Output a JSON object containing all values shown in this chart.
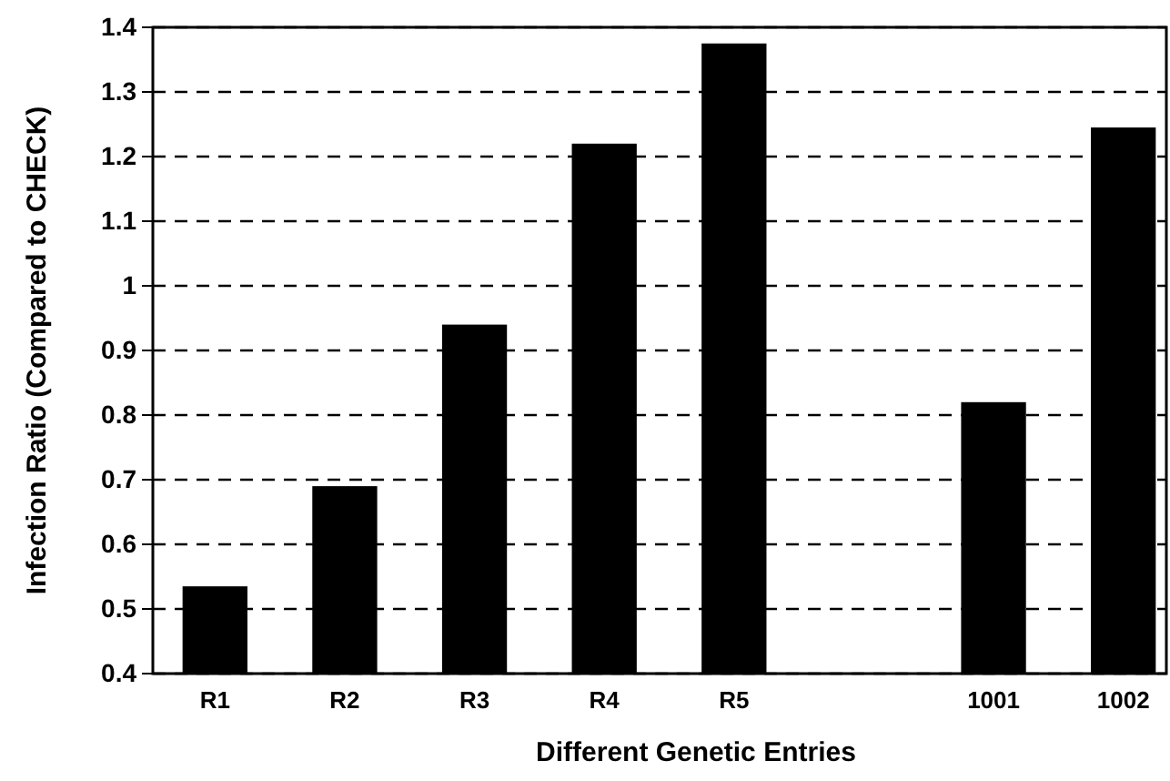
{
  "chart_data": {
    "type": "bar",
    "xlabel": "Different Genetic Entries",
    "ylabel": "Infection Ratio (Compared to CHECK)",
    "categories": [
      "R1",
      "R2",
      "R3",
      "R4",
      "R5",
      null,
      "1001",
      "1002"
    ],
    "values": [
      0.535,
      0.69,
      0.94,
      1.22,
      1.375,
      null,
      0.82,
      1.245
    ],
    "color": "#000000",
    "ylim": [
      0.4,
      1.4
    ],
    "yticks": [
      0.4,
      0.5,
      0.6,
      0.7,
      0.8,
      0.9,
      1,
      1.1,
      1.2,
      1.3,
      1.4
    ],
    "grid": "y",
    "line_style": "dashed"
  }
}
